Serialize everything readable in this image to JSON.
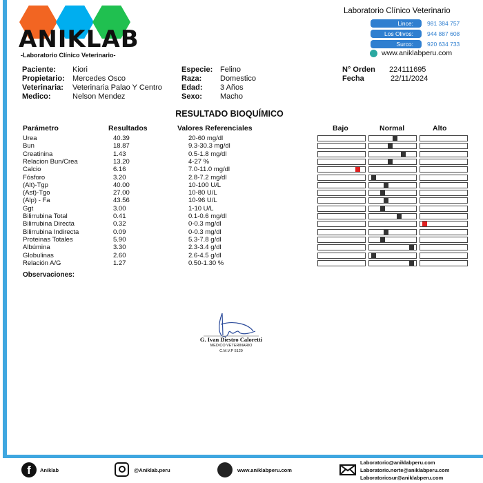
{
  "brand": {
    "name": "ANIKLAB",
    "tagline": "-Laboratorio Clínico Veterinario-",
    "colors": [
      "#f26522",
      "#00aeef",
      "#20c050"
    ]
  },
  "contact": {
    "title": "Laboratorio Clínico Veterinario",
    "branches": [
      {
        "label": "Lince:",
        "phone": "981 384 757"
      },
      {
        "label": "Los Olivos:",
        "phone": "944 887 608"
      },
      {
        "label": "Surco:",
        "phone": "920 634 733"
      }
    ],
    "website": "www.aniklabperu.com"
  },
  "patient": {
    "paciente_label": "Paciente:",
    "paciente": "Kiori",
    "propietario_label": "Propietario:",
    "propietario": "Mercedes Osco",
    "veterinaria_label": "Veterinaria:",
    "veterinaria": "Veterinaria Palao Y Centro",
    "medico_label": "Medico:",
    "medico": "Nelson Mendez",
    "especie_label": "Especie:",
    "especie": "Felino",
    "raza_label": "Raza:",
    "raza": "Domestico",
    "edad_label": "Edad:",
    "edad": "3 Años",
    "sexo_label": "Sexo:",
    "sexo": "Macho",
    "orden_label": "N° Orden",
    "orden": "224111695",
    "fecha_label": "Fecha",
    "fecha": "22/11/2024"
  },
  "report": {
    "title": "RESULTADO BIOQUÍMICO",
    "headers": {
      "param": "Parámetro",
      "result": "Resultados",
      "ref": "Valores Referenciales",
      "low": "Bajo",
      "normal": "Normal",
      "high": "Alto"
    },
    "rows": [
      {
        "param": "Urea",
        "result": "40.39",
        "ref": "20-60 mg/dl",
        "level": "normal",
        "pos": 0.55
      },
      {
        "param": "Bun",
        "result": "18.87",
        "ref": "9.3-30.3 mg/dl",
        "level": "normal",
        "pos": 0.45
      },
      {
        "param": "Creatinina",
        "result": "1.43",
        "ref": "0.5-1.8 mg/dl",
        "level": "normal",
        "pos": 0.75
      },
      {
        "param": "Relacion Bun/Crea",
        "result": "13.20",
        "ref": "4-27 %",
        "level": "normal",
        "pos": 0.45
      },
      {
        "param": "Calcio",
        "result": "6.16",
        "ref": "7.0-11.0 mg/dl",
        "level": "low",
        "pos": 0.88
      },
      {
        "param": "Fósforo",
        "result": "3.20",
        "ref": "2.8-7.2 mg/dl",
        "level": "normal",
        "pos": 0.05
      },
      {
        "param": "(Alt)-Tgp",
        "result": "40.00",
        "ref": "10-100 U/L",
        "level": "normal",
        "pos": 0.35
      },
      {
        "param": "(Ast)-Tgo",
        "result": "27.00",
        "ref": "10-80 U/L",
        "level": "normal",
        "pos": 0.26
      },
      {
        "param": "(Alp) - Fa",
        "result": "43.56",
        "ref": "10-96 U/L",
        "level": "normal",
        "pos": 0.35
      },
      {
        "param": "Ggt",
        "result": "3.00",
        "ref": "1-10 U/L",
        "level": "normal",
        "pos": 0.26
      },
      {
        "param": "Bilirrubina Total",
        "result": "0.41",
        "ref": "0.1-0.6 mg/dl",
        "level": "normal",
        "pos": 0.65
      },
      {
        "param": "Bilirrubina Directa",
        "result": "0.32",
        "ref": "0-0.3 mg/dl",
        "level": "high",
        "pos": 0.05
      },
      {
        "param": "Bilirrubina Indirecta",
        "result": "0.09",
        "ref": "0-0.3 mg/dl",
        "level": "normal",
        "pos": 0.35
      },
      {
        "param": "Proteinas Totales",
        "result": "5.90",
        "ref": "5.3-7.8 g/dl",
        "level": "normal",
        "pos": 0.26
      },
      {
        "param": "Albúmina",
        "result": "3.30",
        "ref": "2.3-3.4 g/dl",
        "level": "normal",
        "pos": 0.95
      },
      {
        "param": "Globulinas",
        "result": "2.60",
        "ref": "2.6-4.5 g/dl",
        "level": "normal",
        "pos": 0.05
      },
      {
        "param": "Relación A/G",
        "result": "1.27",
        "ref": "0.50-1.30 %",
        "level": "normal",
        "pos": 0.95
      }
    ],
    "observaciones": "Observaciones:"
  },
  "signature": {
    "name": "G. Ivan Diestro Caloretti",
    "title": "MEDICO VETERINARIO",
    "cmvp": "C.M.V.P 5129"
  },
  "footer": {
    "facebook": "Aniklab",
    "instagram": "@Aniklab.peru",
    "website": "www.aniklabperu.com",
    "emails": [
      "Laboratorio@aniklabperu.com",
      "Laboratorio.norte@aniklabperu.com",
      "Laboratoriosur@aniklabperu.com"
    ]
  },
  "colors": {
    "accent": "#3fa7e0",
    "normal_marker": "#333333",
    "abnormal_marker": "#e02020"
  }
}
